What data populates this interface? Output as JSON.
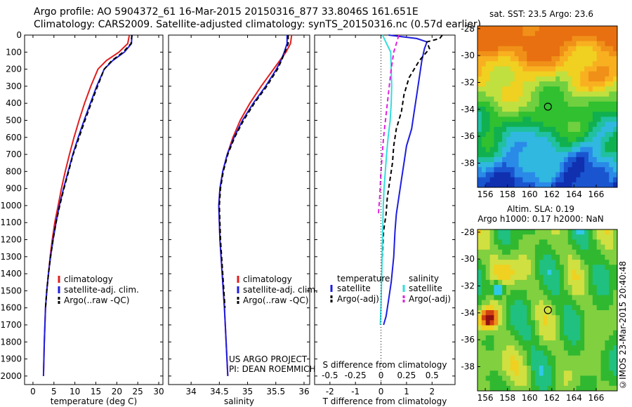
{
  "header": {
    "line1": "Argo profile: AO 5904372_61 16-Mar-2015 20150316_877 33.8046S 161.651E",
    "line2": "Climatology: CARS2009. Satellite-adjusted climatology: synTS_20150316.nc (0.57d earlier)"
  },
  "side_text": "©IMOS 23-Mar-2015 20:40:48",
  "colors": {
    "climatology": "#e01e1e",
    "satellite": "#1e1ee0",
    "argo": "#000000",
    "sal_satellite": "#33dddd",
    "sal_argo": "#e020e0"
  },
  "chart_data": [
    {
      "type": "line",
      "id": "temperature",
      "xlabel": "temperature (deg C)",
      "ylabel": "",
      "xlim": [
        -2,
        31
      ],
      "ylim": [
        2050,
        0
      ],
      "xticks": [
        "0",
        "5",
        "10",
        "15",
        "20",
        "25",
        "30"
      ],
      "xtick_values": [
        0,
        5,
        10,
        15,
        20,
        25,
        30
      ],
      "yticks": [
        "0",
        "100",
        "200",
        "300",
        "400",
        "500",
        "600",
        "700",
        "800",
        "900",
        "1000",
        "1100",
        "1200",
        "1300",
        "1400",
        "1500",
        "1600",
        "1700",
        "1800",
        "1900",
        "2000"
      ],
      "series": [
        {
          "name": "climatology",
          "color": "#e01e1e",
          "dash": "",
          "x": [
            23.0,
            22.6,
            20.5,
            17.5,
            15.5,
            13.8,
            12.3,
            11.0,
            9.8,
            8.7,
            7.7,
            6.8,
            6.0,
            5.2,
            4.6,
            4.1,
            3.7,
            3.3,
            3.0,
            2.7,
            2.5
          ],
          "y": [
            0,
            50,
            100,
            150,
            200,
            300,
            400,
            500,
            600,
            700,
            800,
            900,
            1000,
            1100,
            1200,
            1300,
            1400,
            1500,
            1600,
            1800,
            2000
          ]
        },
        {
          "name": "satellite-adj. clim.",
          "color": "#1e1ee0",
          "dash": "",
          "x": [
            23.6,
            23.5,
            21.8,
            19.0,
            17.0,
            15.2,
            13.7,
            12.2,
            10.8,
            9.5,
            8.4,
            7.3,
            6.3,
            5.5,
            4.8,
            4.2,
            3.7,
            3.3,
            3.0,
            2.7,
            2.5
          ],
          "y": [
            0,
            50,
            100,
            150,
            200,
            300,
            400,
            500,
            600,
            700,
            800,
            900,
            1000,
            1100,
            1200,
            1300,
            1400,
            1500,
            1600,
            1800,
            2000
          ]
        },
        {
          "name": "Argo(..raw -QC)",
          "color": "#000000",
          "dash": "6,4",
          "x": [
            23.6,
            23.4,
            21.5,
            18.8,
            17.0,
            15.4,
            13.9,
            12.4,
            11.0,
            9.6,
            8.5,
            7.4,
            6.4,
            5.5,
            4.8,
            4.2,
            3.7,
            3.3,
            3.0
          ],
          "y": [
            0,
            50,
            100,
            150,
            200,
            300,
            400,
            500,
            600,
            700,
            800,
            900,
            1000,
            1100,
            1200,
            1300,
            1400,
            1500,
            1600
          ]
        }
      ],
      "legend": [
        "climatology",
        "satellite-adj. clim.",
        "Argo(..raw -QC)"
      ],
      "legend_placement": "bottom-right"
    },
    {
      "type": "line",
      "id": "salinity",
      "xlabel": "salinity",
      "xlim": [
        33.6,
        36.1
      ],
      "ylim": [
        2050,
        0
      ],
      "xticks": [
        "34",
        "34.5",
        "35",
        "35.5",
        "36"
      ],
      "xtick_values": [
        34,
        34.5,
        35,
        35.5,
        36
      ],
      "series": [
        {
          "name": "climatology",
          "color": "#e01e1e",
          "dash": "",
          "x": [
            35.78,
            35.76,
            35.68,
            35.57,
            35.46,
            35.24,
            35.04,
            34.87,
            34.74,
            34.64,
            34.56,
            34.51,
            34.49,
            34.5,
            34.51,
            34.53,
            34.55,
            34.57,
            34.59,
            34.62,
            34.65
          ],
          "y": [
            0,
            50,
            100,
            150,
            200,
            300,
            400,
            500,
            600,
            700,
            800,
            900,
            1000,
            1100,
            1200,
            1300,
            1400,
            1500,
            1600,
            1800,
            2000
          ]
        },
        {
          "name": "satellite-adj. clim.",
          "color": "#1e1ee0",
          "dash": "",
          "x": [
            35.7,
            35.7,
            35.65,
            35.59,
            35.51,
            35.32,
            35.1,
            34.91,
            34.76,
            34.64,
            34.56,
            34.51,
            34.49,
            34.5,
            34.51,
            34.53,
            34.55,
            34.57,
            34.59,
            34.62,
            34.65
          ],
          "y": [
            0,
            50,
            100,
            150,
            200,
            300,
            400,
            500,
            600,
            700,
            800,
            900,
            1000,
            1100,
            1200,
            1300,
            1400,
            1500,
            1600,
            1800,
            2000
          ]
        },
        {
          "name": "Argo(..raw -QC)",
          "color": "#000000",
          "dash": "6,4",
          "x": [
            35.72,
            35.72,
            35.66,
            35.6,
            35.53,
            35.34,
            35.12,
            34.93,
            34.77,
            34.65,
            34.57,
            34.52,
            34.5,
            34.51,
            34.52,
            34.54,
            34.56,
            34.58,
            34.6
          ],
          "y": [
            0,
            50,
            100,
            150,
            200,
            300,
            400,
            500,
            600,
            700,
            800,
            900,
            1000,
            1100,
            1200,
            1300,
            1400,
            1500,
            1600
          ]
        }
      ],
      "legend": [
        "climatology",
        "satellite-adj. clim.",
        "Argo(..raw -QC)"
      ],
      "legend_placement": "bottom-right",
      "annotation": [
        "US ARGO PROJECT",
        "PI: DEAN ROEMMICH"
      ]
    },
    {
      "type": "line",
      "id": "difference",
      "xlabel": "T difference from climatology",
      "xlabel2": "S difference from climatology",
      "xlim": [
        -2.6,
        2.9
      ],
      "ylim": [
        2050,
        0
      ],
      "xticks": [
        "-2",
        "-1",
        "0",
        "1",
        "2"
      ],
      "xtick_values": [
        -2,
        -1,
        0,
        1,
        2
      ],
      "xticks_top": [
        "-0.5",
        "-0.25",
        "0",
        "0.25",
        "0.5"
      ],
      "xtick_values_top": [
        -0.5,
        -0.25,
        0,
        0.25,
        0.5
      ],
      "zero_line": true,
      "series": [
        {
          "name": "temperature satellite",
          "color": "#1e1ee0",
          "dash": "",
          "x": [
            0.3,
            1.4,
            1.8,
            1.7,
            1.6,
            1.5,
            1.4,
            1.3,
            1.2,
            1.0,
            0.9,
            0.8,
            0.7,
            0.6,
            0.55,
            0.5,
            0.4,
            0.3,
            0.2,
            0.1
          ],
          "y": [
            0,
            20,
            40,
            80,
            150,
            250,
            350,
            450,
            550,
            650,
            750,
            850,
            950,
            1050,
            1150,
            1300,
            1450,
            1550,
            1650,
            1700
          ]
        },
        {
          "name": "temperature Argo(-adj)",
          "color": "#000000",
          "dash": "6,4",
          "x": [
            2.4,
            2.3,
            1.8,
            1.9,
            1.5,
            1.1,
            0.9,
            0.8,
            0.6,
            0.5,
            0.45,
            0.35,
            0.25,
            0.2,
            0.1,
            0.05
          ],
          "y": [
            0,
            20,
            40,
            80,
            150,
            250,
            350,
            450,
            550,
            650,
            750,
            850,
            950,
            1050,
            1150,
            1300
          ]
        },
        {
          "name": "salinity satellite",
          "color": "#33dddd",
          "dash": "",
          "x": [
            0.06,
            0.22,
            0.38,
            0.4,
            0.42,
            0.4,
            0.36,
            0.28,
            0.22,
            0.17,
            0.12,
            0.09,
            0.06,
            0.03,
            0.0,
            -0.03
          ],
          "y": [
            0,
            50,
            100,
            200,
            300,
            400,
            500,
            600,
            700,
            800,
            900,
            1000,
            1200,
            1400,
            1600,
            1700
          ]
        },
        {
          "name": "salinity Argo(-adj)",
          "color": "#e020e0",
          "dash": "6,4",
          "x": [
            0.7,
            0.6,
            0.5,
            0.4,
            0.25,
            0.1,
            0.0,
            -0.05,
            -0.1
          ],
          "y": [
            0,
            50,
            100,
            200,
            400,
            600,
            800,
            950,
            1050
          ]
        }
      ],
      "legend": [
        "temperature",
        "satellite",
        "Argo(-adj)",
        "salinity",
        "satellite",
        "Argo(-adj)"
      ],
      "legend_placement": "bottom"
    },
    {
      "type": "heatmap",
      "id": "sst_map",
      "title": "sat. SST: 23.5 Argo: 23.6",
      "xticks": [
        "156",
        "158",
        "160",
        "162",
        "164",
        "166"
      ],
      "yticks": [
        "-28",
        "-30",
        "-32",
        "-34",
        "-36",
        "-38"
      ],
      "xlim": [
        155.3,
        167.9
      ],
      "ylim": [
        -39.8,
        -27.8
      ],
      "marker": {
        "lon": 161.65,
        "lat": -33.8
      }
    },
    {
      "type": "heatmap",
      "id": "sla_map",
      "title": "Altim. SLA: 0.19",
      "subtitle": "Argo h1000: 0.17 h2000: NaN",
      "xticks": [
        "156",
        "158",
        "160",
        "162",
        "164",
        "166"
      ],
      "yticks": [
        "-28",
        "-30",
        "-32",
        "-34",
        "-36",
        "-38"
      ],
      "xlim": [
        155.3,
        167.9
      ],
      "ylim": [
        -39.8,
        -27.8
      ],
      "marker": {
        "lon": 161.65,
        "lat": -33.8
      }
    }
  ]
}
